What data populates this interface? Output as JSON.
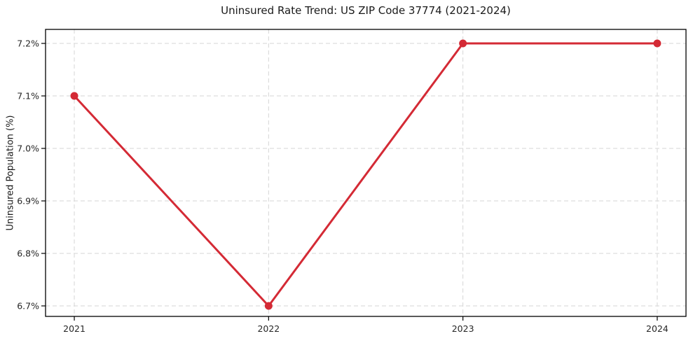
{
  "title": "Uninsured Rate Trend: US ZIP Code 37774 (2021-2024)",
  "chart_data": {
    "type": "line",
    "title": "Uninsured Rate Trend: US ZIP Code 37774 (2021-2024)",
    "xlabel": "",
    "ylabel": "Uninsured Population (%)",
    "x": [
      2021,
      2022,
      2023,
      2024
    ],
    "values": [
      7.1,
      6.7,
      7.2,
      7.2
    ],
    "x_tick_labels": [
      "2021",
      "2022",
      "2023",
      "2024"
    ],
    "y_ticks": [
      6.7,
      6.8,
      6.9,
      7.0,
      7.1,
      7.2
    ],
    "y_tick_labels": [
      "6.7%",
      "6.8%",
      "6.9%",
      "7.0%",
      "7.1%",
      "7.2%"
    ],
    "xlim": [
      2020.852,
      2024.148
    ],
    "ylim": [
      6.68,
      7.2267
    ],
    "grid": true,
    "grid_style": "dashed",
    "legend": false,
    "line_color": "#d42a35",
    "marker": "circle",
    "marker_radius": 5.5,
    "line_width": 3,
    "grid_color": "#d6d6d6",
    "axis_color": "#000000",
    "text_color": "#262626",
    "background": "#ffffff"
  }
}
